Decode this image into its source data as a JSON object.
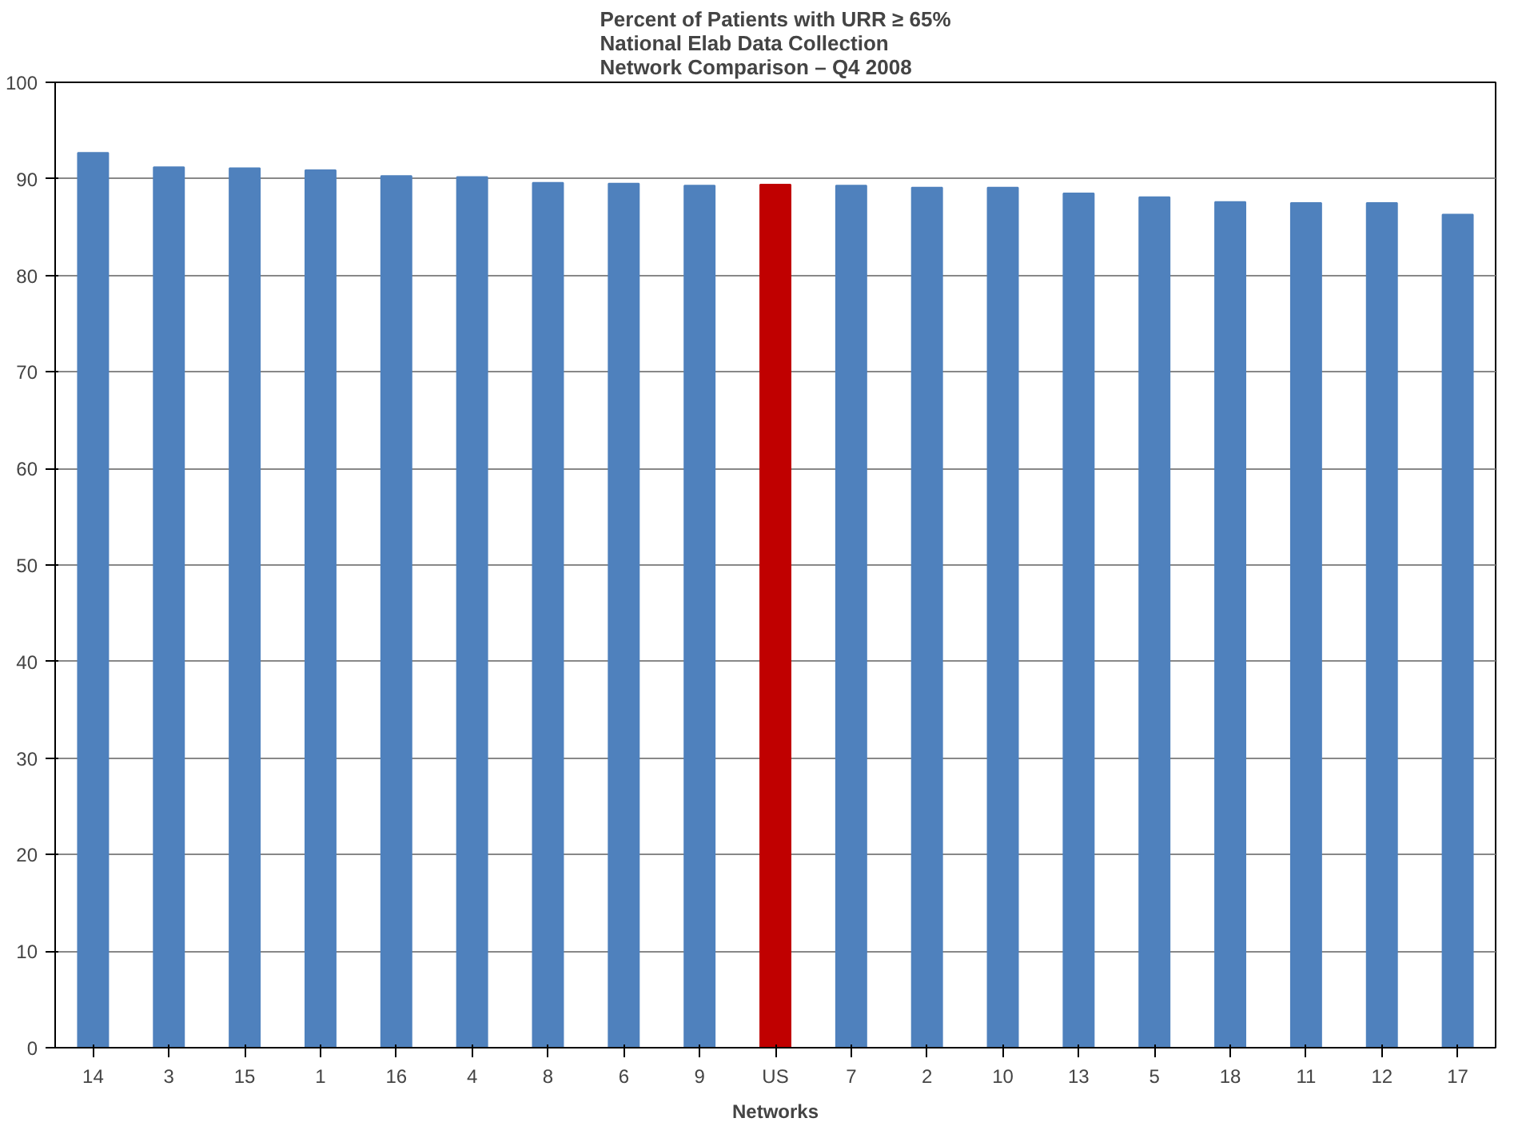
{
  "chart_data": {
    "type": "bar",
    "title": "Percent of Patients with URR ≥ 65%\nNational Elab Data Collection\nNetwork Comparison – Q4 2008",
    "xlabel": "Networks",
    "categories": [
      "14",
      "3",
      "15",
      "1",
      "16",
      "4",
      "8",
      "6",
      "9",
      "US",
      "7",
      "2",
      "10",
      "13",
      "5",
      "18",
      "11",
      "12",
      "17"
    ],
    "values": [
      92.7,
      91.2,
      91.1,
      90.9,
      90.3,
      90.2,
      89.6,
      89.5,
      89.3,
      89.4,
      89.3,
      89.1,
      89.1,
      88.5,
      88.1,
      87.6,
      87.5,
      87.5,
      86.3
    ],
    "colors": [
      "#4f81bd",
      "#4f81bd",
      "#4f81bd",
      "#4f81bd",
      "#4f81bd",
      "#4f81bd",
      "#4f81bd",
      "#4f81bd",
      "#4f81bd",
      "#c00000",
      "#4f81bd",
      "#4f81bd",
      "#4f81bd",
      "#4f81bd",
      "#4f81bd",
      "#4f81bd",
      "#4f81bd",
      "#4f81bd",
      "#4f81bd"
    ],
    "ylim": [
      0,
      100
    ],
    "yticks": [
      0,
      10,
      20,
      30,
      40,
      50,
      60,
      70,
      80,
      90,
      100
    ],
    "grid": "y"
  }
}
